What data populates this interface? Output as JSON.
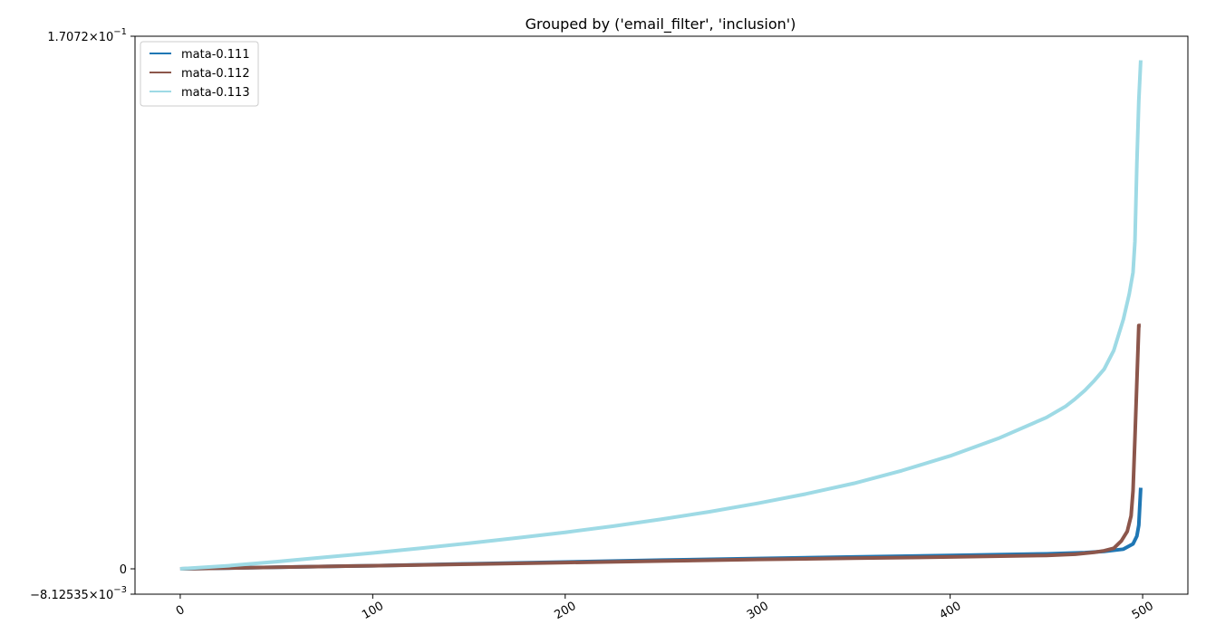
{
  "chart_data": {
    "type": "line",
    "title": "Grouped by ('email_filter', 'inclusion')",
    "xlabel": "",
    "ylabel": "",
    "xlim": [
      -23.5,
      523.5
    ],
    "ylim": [
      -0.00812535,
      0.17072
    ],
    "x_ticks": [
      0,
      100,
      200,
      300,
      400,
      500
    ],
    "x_tick_labels": [
      "0",
      "100",
      "200",
      "300",
      "400",
      "500"
    ],
    "y_ticks": [
      {
        "value": -0.00812535,
        "mantissa": "−8.12535",
        "exponent": "−3"
      },
      {
        "value": 0,
        "mantissa": "0",
        "exponent": ""
      },
      {
        "value": 0.17072,
        "mantissa": "1.7072",
        "exponent": "−1"
      }
    ],
    "grid": false,
    "legend_position": "top-left",
    "series": [
      {
        "name": "mata-0.111",
        "color": "#1f77b4",
        "x": [
          0,
          50,
          100,
          150,
          200,
          250,
          300,
          350,
          400,
          450,
          470,
          480,
          490,
          495,
          497,
          498,
          499
        ],
        "y": [
          0,
          0.0005,
          0.001,
          0.0016,
          0.0022,
          0.0028,
          0.0033,
          0.0038,
          0.0043,
          0.0048,
          0.0052,
          0.0056,
          0.0063,
          0.008,
          0.0105,
          0.014,
          0.026
        ]
      },
      {
        "name": "mata-0.112",
        "color": "#8c564b",
        "x": [
          0,
          50,
          100,
          150,
          200,
          250,
          300,
          350,
          400,
          450,
          465,
          475,
          480,
          485,
          489,
          492,
          494,
          495,
          496,
          497,
          498,
          499
        ],
        "y": [
          0,
          0.0005,
          0.001,
          0.0015,
          0.002,
          0.0025,
          0.003,
          0.0034,
          0.0038,
          0.0043,
          0.0047,
          0.0053,
          0.0058,
          0.0066,
          0.009,
          0.012,
          0.017,
          0.025,
          0.042,
          0.06,
          0.078,
          0.078
        ]
      },
      {
        "name": "mata-0.113",
        "color": "#9edae5",
        "x": [
          0,
          25,
          50,
          75,
          100,
          125,
          150,
          175,
          200,
          225,
          250,
          275,
          300,
          325,
          350,
          375,
          400,
          425,
          450,
          460,
          465,
          470,
          475,
          480,
          485,
          490,
          493,
          495,
          496,
          497,
          498,
          499
        ],
        "y": [
          0,
          0.001,
          0.0023,
          0.0037,
          0.0051,
          0.0066,
          0.0082,
          0.0099,
          0.0117,
          0.0137,
          0.0159,
          0.0183,
          0.021,
          0.024,
          0.0274,
          0.0315,
          0.0362,
          0.0418,
          0.0485,
          0.0521,
          0.0545,
          0.0572,
          0.0604,
          0.064,
          0.07,
          0.08,
          0.088,
          0.095,
          0.105,
          0.13,
          0.15,
          0.163
        ]
      }
    ]
  }
}
